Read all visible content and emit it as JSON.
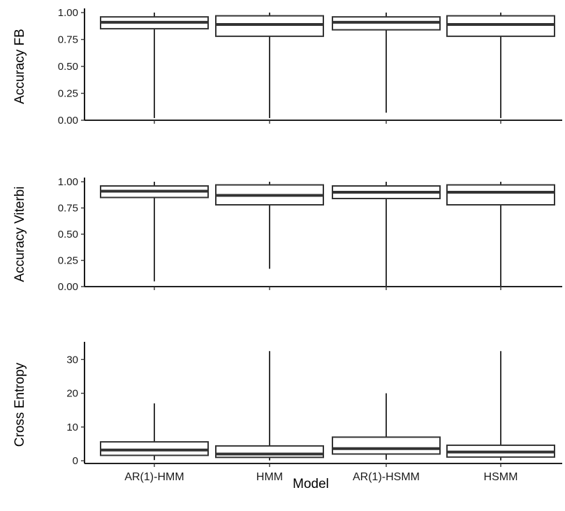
{
  "chart_data": {
    "type": "boxplot",
    "xlabel": "Model",
    "categories": [
      "AR(1)-HMM",
      "HMM",
      "AR(1)-HSMM",
      "HSMM"
    ],
    "panels": [
      {
        "ylabel": "Accuracy FB",
        "ylim": [
          0,
          1.0
        ],
        "yticks": [
          0,
          0.25,
          0.5,
          0.75,
          1.0
        ],
        "ytick_labels": [
          "0.00",
          "0.25",
          "0.50",
          "0.75",
          "1.00"
        ],
        "boxes": [
          {
            "category": "AR(1)-HMM",
            "min": 0.02,
            "q1": 0.85,
            "median": 0.91,
            "q3": 0.96,
            "max": 1.0
          },
          {
            "category": "HMM",
            "min": 0.02,
            "q1": 0.78,
            "median": 0.89,
            "q3": 0.97,
            "max": 1.0
          },
          {
            "category": "AR(1)-HSMM",
            "min": 0.07,
            "q1": 0.84,
            "median": 0.91,
            "q3": 0.96,
            "max": 1.0
          },
          {
            "category": "HSMM",
            "min": 0.02,
            "q1": 0.78,
            "median": 0.89,
            "q3": 0.97,
            "max": 1.0
          }
        ]
      },
      {
        "ylabel": "Accuracy Viterbi",
        "ylim": [
          0,
          1.0
        ],
        "yticks": [
          0,
          0.25,
          0.5,
          0.75,
          1.0
        ],
        "ytick_labels": [
          "0.00",
          "0.25",
          "0.50",
          "0.75",
          "1.00"
        ],
        "boxes": [
          {
            "category": "AR(1)-HMM",
            "min": 0.05,
            "q1": 0.85,
            "median": 0.91,
            "q3": 0.96,
            "max": 1.0
          },
          {
            "category": "HMM",
            "min": 0.17,
            "q1": 0.78,
            "median": 0.87,
            "q3": 0.97,
            "max": 1.0
          },
          {
            "category": "AR(1)-HSMM",
            "min": 0.0,
            "q1": 0.84,
            "median": 0.9,
            "q3": 0.96,
            "max": 1.0
          },
          {
            "category": "HSMM",
            "min": 0.0,
            "q1": 0.78,
            "median": 0.9,
            "q3": 0.97,
            "max": 1.0
          }
        ]
      },
      {
        "ylabel": "Cross Entropy",
        "ylim": [
          -0.8,
          34
        ],
        "yticks": [
          0,
          10,
          20,
          30
        ],
        "ytick_labels": [
          "0",
          "10",
          "20",
          "30"
        ],
        "boxes": [
          {
            "category": "AR(1)-HMM",
            "min": 0.2,
            "q1": 1.6,
            "median": 3.2,
            "q3": 5.6,
            "max": 17
          },
          {
            "category": "HMM",
            "min": 0.1,
            "q1": 1.0,
            "median": 2.0,
            "q3": 4.4,
            "max": 32.5
          },
          {
            "category": "AR(1)-HSMM",
            "min": 0.3,
            "q1": 2.0,
            "median": 3.6,
            "q3": 7.0,
            "max": 20
          },
          {
            "category": "HSMM",
            "min": 0.1,
            "q1": 1.1,
            "median": 2.6,
            "q3": 4.6,
            "max": 32.5
          }
        ]
      }
    ],
    "grid": false,
    "legend": "none"
  }
}
